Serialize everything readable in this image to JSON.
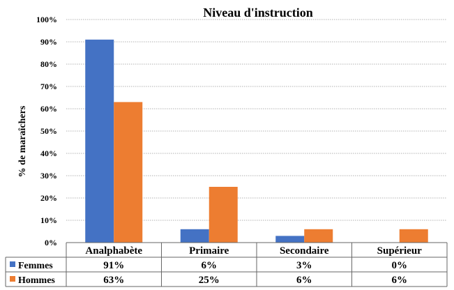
{
  "chart_data": {
    "type": "bar",
    "title": "Niveau d'instruction",
    "ylabel": "% de maraîchers",
    "xlabel": "",
    "categories": [
      "Analphabète",
      "Primaire",
      "Secondaire",
      "Supérieur"
    ],
    "series": [
      {
        "name": "Femmes",
        "values": [
          91,
          6,
          3,
          0
        ],
        "color": "#4472C4",
        "labels": [
          "91%",
          "6%",
          "3%",
          "0%"
        ]
      },
      {
        "name": "Hommes",
        "values": [
          63,
          25,
          6,
          6
        ],
        "color": "#ED7D31",
        "labels": [
          "63%",
          "25%",
          "6%",
          "6%"
        ]
      }
    ],
    "ylim": [
      0,
      100
    ],
    "yticks": [
      0,
      10,
      20,
      30,
      40,
      50,
      60,
      70,
      80,
      90,
      100
    ],
    "ytick_labels": [
      "0%",
      "10%",
      "20%",
      "30%",
      "40%",
      "50%",
      "60%",
      "70%",
      "80%",
      "90%",
      "100%"
    ],
    "grid": true,
    "legend": "data-table"
  }
}
